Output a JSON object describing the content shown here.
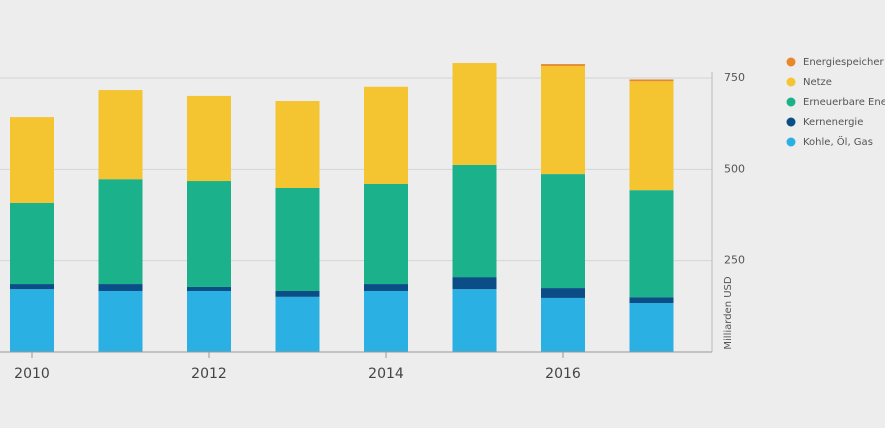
{
  "chart_data": {
    "type": "stacked_bar",
    "y_axis_label": "Milliarden USD",
    "categories": [
      "2010",
      null,
      "2012",
      null,
      "2014",
      null,
      "2016",
      null
    ],
    "series": [
      {
        "name": "Kohle, Öl, Gas",
        "color": "#2bb0e4",
        "values": [
          172,
          167,
          167,
          151,
          167,
          172,
          148,
          134
        ]
      },
      {
        "name": "Kernenergie",
        "color": "#0b4e87",
        "values": [
          14,
          19,
          11,
          16,
          19,
          33,
          27,
          16
        ]
      },
      {
        "name": "Erneuerbare Ene",
        "color": "#1bb28b",
        "values": [
          222,
          287,
          290,
          282,
          274,
          307,
          312,
          293
        ]
      },
      {
        "name": "Netze",
        "color": "#f4c431",
        "values": [
          235,
          244,
          233,
          238,
          266,
          279,
          296,
          298
        ]
      },
      {
        "name": "Energiespeicher",
        "color": "#e8872c",
        "values": [
          0,
          0,
          0,
          0,
          0,
          0,
          5,
          5
        ]
      }
    ],
    "ylim": [
      0,
      800
    ],
    "yticks": [
      250,
      500,
      750
    ],
    "grid": true,
    "legend": "right"
  }
}
